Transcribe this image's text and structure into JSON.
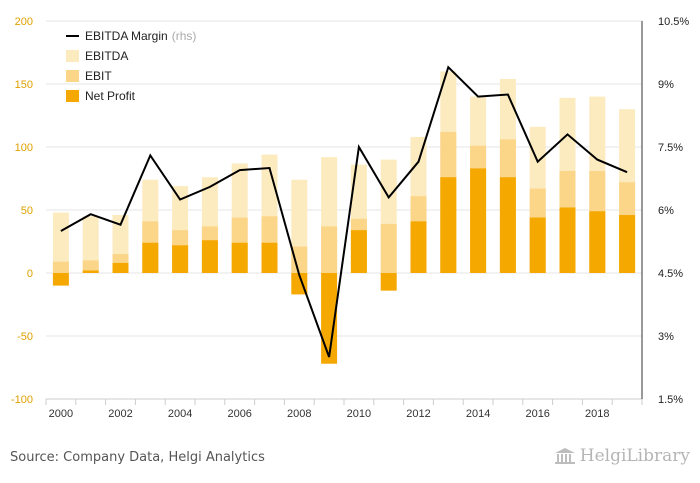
{
  "chart_data": {
    "type": "bar",
    "title": "",
    "xlabel": "",
    "ylabel": "",
    "x": [
      2000,
      2001,
      2002,
      2003,
      2004,
      2005,
      2006,
      2007,
      2008,
      2009,
      2010,
      2011,
      2012,
      2013,
      2014,
      2015,
      2016,
      2017,
      2018,
      2019
    ],
    "x_tick_labels": [
      "2000",
      "2002",
      "2004",
      "2006",
      "2008",
      "2010",
      "2012",
      "2014",
      "2016",
      "2018"
    ],
    "x_tick_values": [
      2000,
      2002,
      2004,
      2006,
      2008,
      2010,
      2012,
      2014,
      2016,
      2018
    ],
    "ylim": [
      -100,
      200
    ],
    "y_ticks": [
      -100,
      -50,
      0,
      50,
      100,
      150,
      200
    ],
    "y_tick_labels": [
      "-100",
      "-50",
      "0",
      "50",
      "100",
      "150",
      "200"
    ],
    "y2lim": [
      1.5,
      10.5
    ],
    "y2_ticks": [
      1.5,
      3,
      4.5,
      6,
      7.5,
      9,
      10.5
    ],
    "y2_tick_labels": [
      "1.5%",
      "3%",
      "4.5%",
      "6%",
      "7.5%",
      "9%",
      "10.5%"
    ],
    "grid": true,
    "legend_position": "top-left",
    "series": [
      {
        "name": "EBITDA",
        "type": "bar",
        "color": "#FDEBC0",
        "values": [
          48,
          45,
          46,
          74,
          69,
          76,
          87,
          94,
          74,
          92,
          86,
          90,
          108,
          160,
          140,
          154,
          116,
          139,
          140,
          130
        ]
      },
      {
        "name": "EBIT",
        "type": "bar",
        "color": "#FBD588",
        "values": [
          9,
          10,
          15,
          41,
          34,
          37,
          44,
          45,
          21,
          37,
          43,
          39,
          61,
          112,
          101,
          106,
          67,
          81,
          81,
          72
        ]
      },
      {
        "name": "Net Profit",
        "type": "bar",
        "color": "#F5A800",
        "values": [
          -10,
          2,
          8,
          24,
          22,
          26,
          24,
          24,
          -17,
          -72,
          34,
          -14,
          41,
          76,
          83,
          76,
          44,
          52,
          49,
          46
        ]
      },
      {
        "name": "EBITDA Margin",
        "name_suffix": "(rhs)",
        "type": "line",
        "axis": "right",
        "color": "#000000",
        "values": [
          5.5,
          5.9,
          5.65,
          7.3,
          6.25,
          6.55,
          6.95,
          7.0,
          4.45,
          2.5,
          7.5,
          6.3,
          7.15,
          9.4,
          8.7,
          8.75,
          7.15,
          7.8,
          7.2,
          6.9
        ]
      }
    ]
  },
  "footer": {
    "source": "Source: Company Data, Helgi Analytics",
    "logo_text": "HelgiLibrary",
    "logo_icon": "building-icon"
  }
}
